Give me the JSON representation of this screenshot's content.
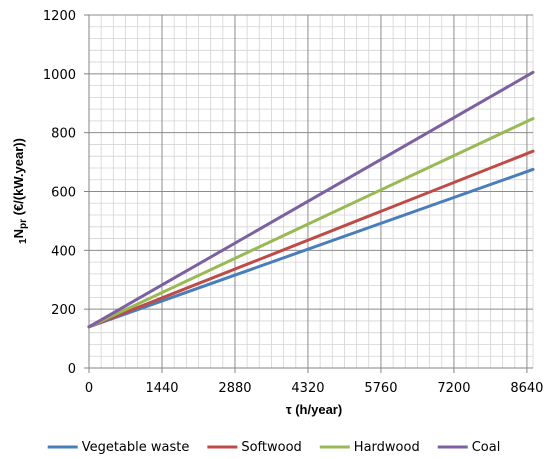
{
  "chart_data": {
    "type": "line",
    "xlabel": "τ (h/year)",
    "ylabel": {
      "prefix": "1",
      "main": "N",
      "sub": "pr",
      "rest": " (€/(kW.year))"
    },
    "xlim": [
      0,
      8760
    ],
    "ylim": [
      0,
      1200
    ],
    "x_ticks": [
      0,
      1440,
      2880,
      4320,
      5760,
      7200,
      8640
    ],
    "y_ticks": [
      0,
      200,
      400,
      600,
      800,
      1000,
      1200
    ],
    "grid": true,
    "legend_position": "bottom",
    "series": [
      {
        "name": "Vegetable waste",
        "color": "#4a7ebb",
        "x": [
          0,
          8760
        ],
        "y": [
          140,
          675
        ]
      },
      {
        "name": "Softwood",
        "color": "#be4b48",
        "x": [
          0,
          8760
        ],
        "y": [
          140,
          737
        ]
      },
      {
        "name": "Hardwood",
        "color": "#98b954",
        "x": [
          0,
          8760
        ],
        "y": [
          140,
          848
        ]
      },
      {
        "name": "Coal",
        "color": "#7d60a0",
        "x": [
          0,
          8760
        ],
        "y": [
          140,
          1005
        ]
      }
    ]
  }
}
